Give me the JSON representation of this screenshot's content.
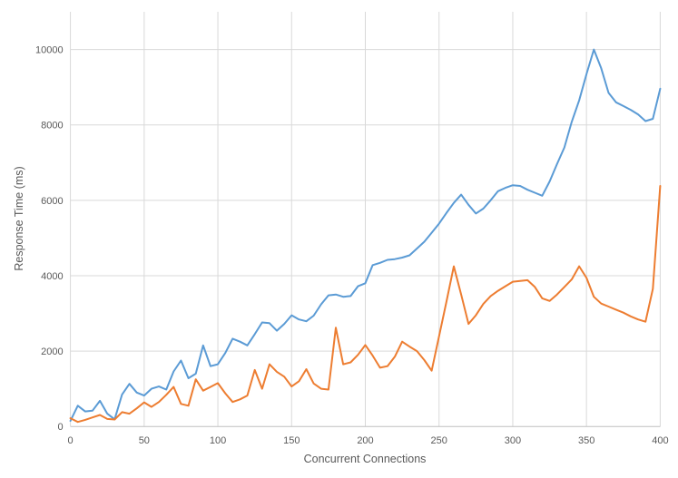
{
  "chart_data": {
    "type": "line",
    "title": "",
    "xlabel": "Concurrent Connections",
    "ylabel": "Response Time (ms)",
    "xlim": [
      0,
      400
    ],
    "ylim": [
      0,
      11000
    ],
    "x_ticks": [
      0,
      50,
      100,
      150,
      200,
      250,
      300,
      350,
      400
    ],
    "y_ticks": [
      0,
      2000,
      4000,
      6000,
      8000,
      10000
    ],
    "grid": true,
    "legend_position": "none",
    "colors": {
      "gridline": "#d9d9d9",
      "axis_line": "#bfbfbf",
      "tick_text": "#595959",
      "background": "#ffffff"
    },
    "x": [
      0,
      5,
      10,
      15,
      20,
      25,
      30,
      35,
      40,
      45,
      50,
      55,
      60,
      65,
      70,
      75,
      80,
      85,
      90,
      95,
      100,
      105,
      110,
      115,
      120,
      125,
      130,
      135,
      140,
      145,
      150,
      155,
      160,
      165,
      170,
      175,
      180,
      185,
      190,
      195,
      200,
      205,
      210,
      215,
      220,
      225,
      230,
      235,
      240,
      245,
      250,
      255,
      260,
      265,
      270,
      275,
      280,
      285,
      290,
      295,
      300,
      305,
      310,
      315,
      320,
      325,
      330,
      335,
      340,
      345,
      350,
      355,
      360,
      365,
      370,
      375,
      380,
      385,
      390,
      395,
      400
    ],
    "series": [
      {
        "name": "blue-line",
        "color": "#5B9BD5",
        "values": [
          150,
          550,
          400,
          420,
          680,
          340,
          190,
          850,
          1130,
          900,
          820,
          1000,
          1060,
          980,
          1460,
          1750,
          1280,
          1400,
          2150,
          1600,
          1650,
          1950,
          2330,
          2250,
          2150,
          2450,
          2760,
          2740,
          2540,
          2720,
          2950,
          2840,
          2790,
          2940,
          3240,
          3480,
          3500,
          3440,
          3460,
          3720,
          3800,
          4280,
          4340,
          4420,
          4440,
          4480,
          4540,
          4720,
          4900,
          5140,
          5380,
          5660,
          5930,
          6150,
          5880,
          5650,
          5780,
          6000,
          6240,
          6330,
          6400,
          6380,
          6280,
          6200,
          6120,
          6500,
          6960,
          7400,
          8080,
          8650,
          9350,
          10000,
          9500,
          8850,
          8600,
          8500,
          8400,
          8280,
          8100,
          8160,
          8960
        ]
      },
      {
        "name": "orange-line",
        "color": "#ED7D31",
        "values": [
          220,
          120,
          175,
          240,
          305,
          200,
          185,
          380,
          340,
          480,
          640,
          520,
          650,
          840,
          1050,
          600,
          550,
          1250,
          950,
          1050,
          1150,
          880,
          650,
          720,
          820,
          1500,
          1000,
          1650,
          1450,
          1320,
          1060,
          1200,
          1520,
          1140,
          1000,
          980,
          2620,
          1650,
          1700,
          1900,
          2160,
          1880,
          1560,
          1600,
          1850,
          2250,
          2120,
          2000,
          1760,
          1480,
          2390,
          3300,
          4250,
          3500,
          2720,
          2950,
          3250,
          3460,
          3600,
          3720,
          3840,
          3860,
          3880,
          3700,
          3400,
          3330,
          3500,
          3700,
          3900,
          4250,
          3940,
          3440,
          3260,
          3180,
          3100,
          3020,
          2920,
          2840,
          2780,
          3650,
          6380
        ]
      }
    ]
  }
}
